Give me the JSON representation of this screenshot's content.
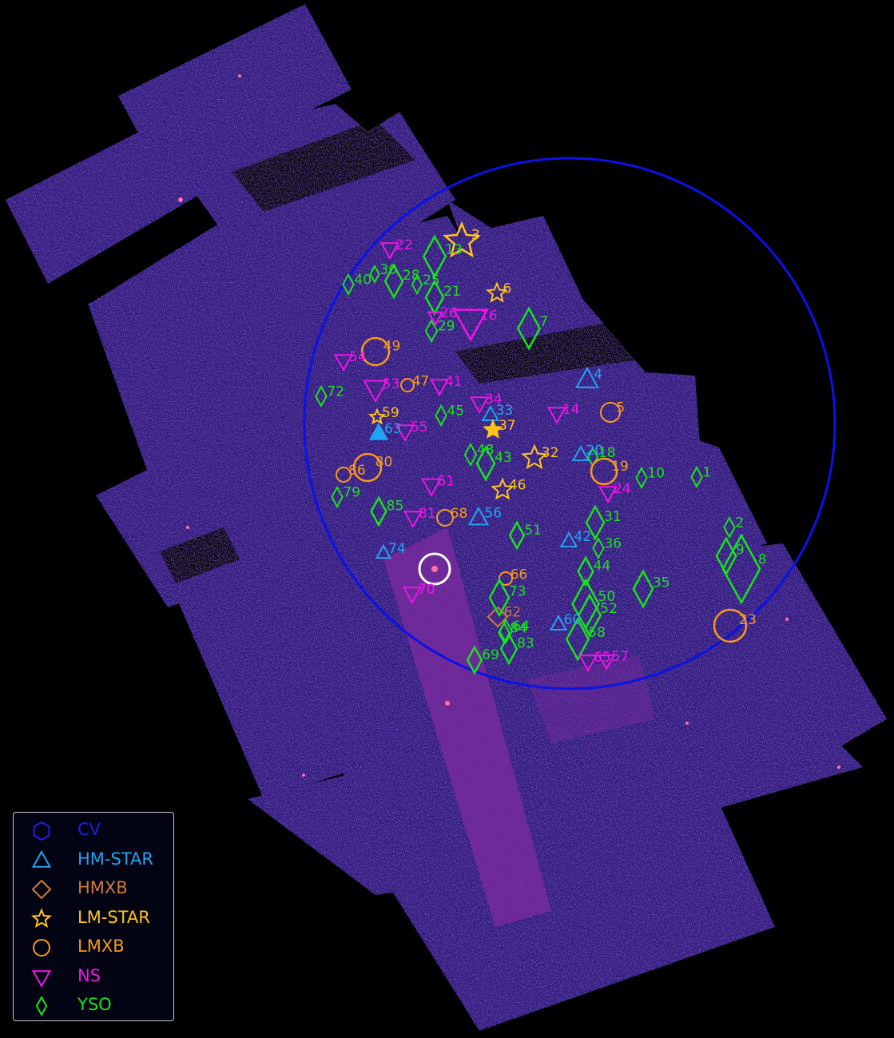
{
  "image": {
    "background": "#000000",
    "field_color": "#2a1670",
    "field_noise": "#3c20b4",
    "strip_color": "#7a2a9e",
    "region_circle_color": "#0a12e8",
    "source_circle_color": "#ffffff"
  },
  "legend": [
    {
      "name": "CV",
      "marker": "hexagon",
      "color": "#1f1fe6"
    },
    {
      "name": "HM-STAR",
      "marker": "triangle-up",
      "color": "#1fa4f2"
    },
    {
      "name": "HMXB",
      "marker": "diamond",
      "color": "#cd7a3a"
    },
    {
      "name": "LM-STAR",
      "marker": "star",
      "color": "#ffc41a"
    },
    {
      "name": "LMXB",
      "marker": "circle",
      "color": "#f79a1b"
    },
    {
      "name": "NS",
      "marker": "triangle-down",
      "color": "#f015e6"
    },
    {
      "name": "YSO",
      "marker": "diamond-thin",
      "color": "#17e31a"
    }
  ],
  "sources": [
    {
      "id": "1",
      "class": "YSO"
    },
    {
      "id": "2",
      "class": "YSO"
    },
    {
      "id": "3",
      "class": "LM-STAR"
    },
    {
      "id": "4",
      "class": "HM-STAR"
    },
    {
      "id": "5",
      "class": "LMXB"
    },
    {
      "id": "6",
      "class": "LM-STAR"
    },
    {
      "id": "7",
      "class": "YSO"
    },
    {
      "id": "8",
      "class": "YSO"
    },
    {
      "id": "9",
      "class": "YSO"
    },
    {
      "id": "10",
      "class": "YSO"
    },
    {
      "id": "13",
      "class": "YSO"
    },
    {
      "id": "14",
      "class": "NS"
    },
    {
      "id": "16",
      "class": "NS"
    },
    {
      "id": "18",
      "class": "YSO"
    },
    {
      "id": "19",
      "class": "LMXB"
    },
    {
      "id": "20",
      "class": "HM-STAR"
    },
    {
      "id": "21",
      "class": "YSO"
    },
    {
      "id": "22",
      "class": "NS"
    },
    {
      "id": "23",
      "class": "LMXB"
    },
    {
      "id": "24",
      "class": "NS"
    },
    {
      "id": "25",
      "class": "YSO"
    },
    {
      "id": "26",
      "class": "NS"
    },
    {
      "id": "28",
      "class": "YSO"
    },
    {
      "id": "29",
      "class": "YSO"
    },
    {
      "id": "30",
      "class": "YSO"
    },
    {
      "id": "31",
      "class": "YSO"
    },
    {
      "id": "32",
      "class": "LM-STAR"
    },
    {
      "id": "33",
      "class": "HM-STAR"
    },
    {
      "id": "34",
      "class": "NS"
    },
    {
      "id": "35",
      "class": "YSO"
    },
    {
      "id": "36",
      "class": "YSO"
    },
    {
      "id": "37",
      "class": "LM-STAR"
    },
    {
      "id": "40",
      "class": "YSO"
    },
    {
      "id": "41",
      "class": "NS"
    },
    {
      "id": "42",
      "class": "HM-STAR"
    },
    {
      "id": "43",
      "class": "YSO"
    },
    {
      "id": "44",
      "class": "YSO"
    },
    {
      "id": "45",
      "class": "YSO"
    },
    {
      "id": "46",
      "class": "LM-STAR"
    },
    {
      "id": "47",
      "class": "LMXB"
    },
    {
      "id": "48",
      "class": "YSO"
    },
    {
      "id": "49",
      "class": "LMXB"
    },
    {
      "id": "50",
      "class": "YSO"
    },
    {
      "id": "51",
      "class": "YSO"
    },
    {
      "id": "52",
      "class": "YSO"
    },
    {
      "id": "53",
      "class": "NS"
    },
    {
      "id": "54",
      "class": "NS"
    },
    {
      "id": "55",
      "class": "NS"
    },
    {
      "id": "56",
      "class": "HM-STAR"
    },
    {
      "id": "57",
      "class": "NS"
    },
    {
      "id": "58",
      "class": "YSO"
    },
    {
      "id": "59",
      "class": "LM-STAR"
    },
    {
      "id": "60",
      "class": "HM-STAR"
    },
    {
      "id": "61",
      "class": "NS"
    },
    {
      "id": "62",
      "class": "HMXB"
    },
    {
      "id": "63",
      "class": "HM-STAR"
    },
    {
      "id": "64",
      "class": "YSO"
    },
    {
      "id": "65",
      "class": "NS"
    },
    {
      "id": "66",
      "class": "LMXB"
    },
    {
      "id": "68",
      "class": "LMXB"
    },
    {
      "id": "69",
      "class": "YSO"
    },
    {
      "id": "70",
      "class": "NS"
    },
    {
      "id": "72",
      "class": "YSO"
    },
    {
      "id": "73",
      "class": "YSO"
    },
    {
      "id": "74",
      "class": "HM-STAR"
    },
    {
      "id": "79",
      "class": "YSO"
    },
    {
      "id": "80",
      "class": "LMXB"
    },
    {
      "id": "81",
      "class": "NS"
    },
    {
      "id": "83",
      "class": "YSO"
    },
    {
      "id": "84",
      "class": "YSO"
    },
    {
      "id": "85",
      "class": "YSO"
    },
    {
      "id": "86",
      "class": "LMXB"
    }
  ]
}
